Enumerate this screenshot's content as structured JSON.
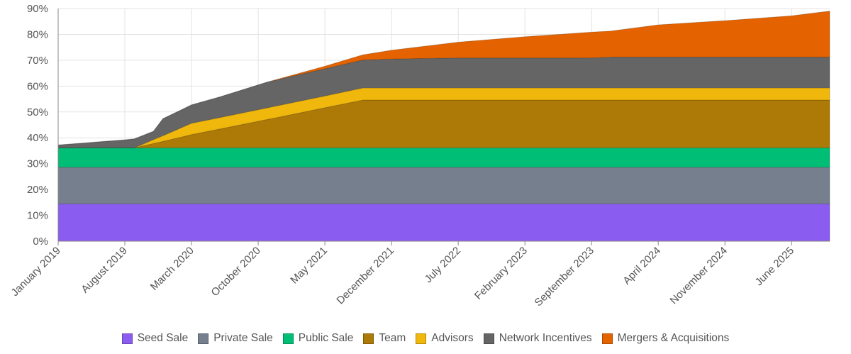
{
  "chart_data": {
    "type": "area",
    "stacked": true,
    "grid": true,
    "legend_position": "bottom",
    "ylim": [
      0,
      90
    ],
    "y_ticks": [
      "0%",
      "10%",
      "20%",
      "30%",
      "40%",
      "50%",
      "60%",
      "70%",
      "80%",
      "90%"
    ],
    "x_range": [
      "2019-01",
      "2025-10"
    ],
    "x_ticks": [
      {
        "date": "2019-01",
        "label": "January 2019"
      },
      {
        "date": "2019-08",
        "label": "August 2019"
      },
      {
        "date": "2020-03",
        "label": "March 2020"
      },
      {
        "date": "2020-10",
        "label": "October 2020"
      },
      {
        "date": "2021-05",
        "label": "May 2021"
      },
      {
        "date": "2021-12",
        "label": "December 2021"
      },
      {
        "date": "2022-07",
        "label": "July 2022"
      },
      {
        "date": "2023-02",
        "label": "February 2023"
      },
      {
        "date": "2023-09",
        "label": "September 2023"
      },
      {
        "date": "2024-04",
        "label": "April 2024"
      },
      {
        "date": "2024-11",
        "label": "November 2024"
      },
      {
        "date": "2025-06",
        "label": "June 2025"
      }
    ],
    "x": [
      "2019-01",
      "2019-08",
      "2019-09",
      "2019-11",
      "2019-12",
      "2020-03",
      "2020-06",
      "2020-11",
      "2021-05",
      "2021-09",
      "2021-12",
      "2022-07",
      "2023-02",
      "2023-09",
      "2023-11",
      "2024-04",
      "2024-11",
      "2025-06",
      "2025-10"
    ],
    "series": [
      {
        "name": "Seed Sale",
        "color": "#8b5cf0",
        "values": [
          14.5,
          14.5,
          14.5,
          14.5,
          14.5,
          14.5,
          14.5,
          14.5,
          14.5,
          14.5,
          14.5,
          14.5,
          14.5,
          14.5,
          14.5,
          14.5,
          14.5,
          14.5,
          14.5
        ]
      },
      {
        "name": "Private Sale",
        "color": "#757f8e",
        "values": [
          14.1,
          14.1,
          14.1,
          14.1,
          14.1,
          14.1,
          14.1,
          14.1,
          14.1,
          14.1,
          14.1,
          14.1,
          14.1,
          14.1,
          14.1,
          14.1,
          14.1,
          14.1,
          14.1
        ]
      },
      {
        "name": "Public Sale",
        "color": "#00be75",
        "values": [
          7.5,
          7.5,
          7.5,
          7.5,
          7.5,
          7.5,
          7.5,
          7.5,
          7.5,
          7.5,
          7.5,
          7.5,
          7.5,
          7.5,
          7.5,
          7.5,
          7.5,
          7.5,
          7.5
        ]
      },
      {
        "name": "Team",
        "color": "#ad7a07",
        "values": [
          0,
          0,
          0,
          1.7,
          2.5,
          5.1,
          7.3,
          11.0,
          15.5,
          18.5,
          18.5,
          18.5,
          18.5,
          18.5,
          18.5,
          18.5,
          18.5,
          18.5,
          18.5
        ]
      },
      {
        "name": "Advisors",
        "color": "#f0b70c",
        "values": [
          0,
          0,
          0,
          1.5,
          2.2,
          4.4,
          4.45,
          4.5,
          4.6,
          4.7,
          4.7,
          4.7,
          4.7,
          4.7,
          4.7,
          4.7,
          4.7,
          4.7,
          4.7
        ]
      },
      {
        "name": "Network Incentives",
        "color": "#656565",
        "values": [
          1.1,
          3.1,
          3.5,
          3.2,
          6.6,
          7.1,
          8.0,
          10.0,
          10.5,
          10.8,
          11.2,
          11.6,
          11.6,
          11.6,
          11.9,
          11.9,
          11.9,
          11.9,
          11.9
        ]
      },
      {
        "name": "Mergers & Acquisitions",
        "color": "#e46300",
        "values": [
          0,
          0,
          0,
          0,
          0,
          0,
          0,
          0,
          1.0,
          2.0,
          3.4,
          6.1,
          8.2,
          10.0,
          10.1,
          12.5,
          14.1,
          16.0,
          17.8
        ]
      }
    ]
  }
}
